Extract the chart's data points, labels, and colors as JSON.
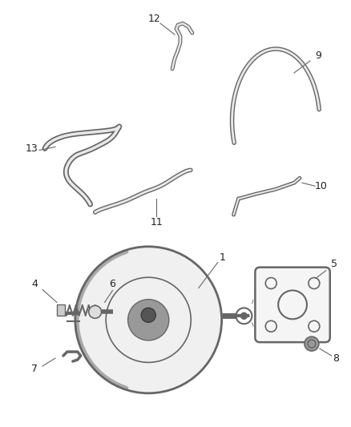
{
  "bg_color": "#ffffff",
  "line_color": "#666666",
  "label_color": "#222222",
  "fig_width": 4.38,
  "fig_height": 5.33,
  "dpi": 100
}
